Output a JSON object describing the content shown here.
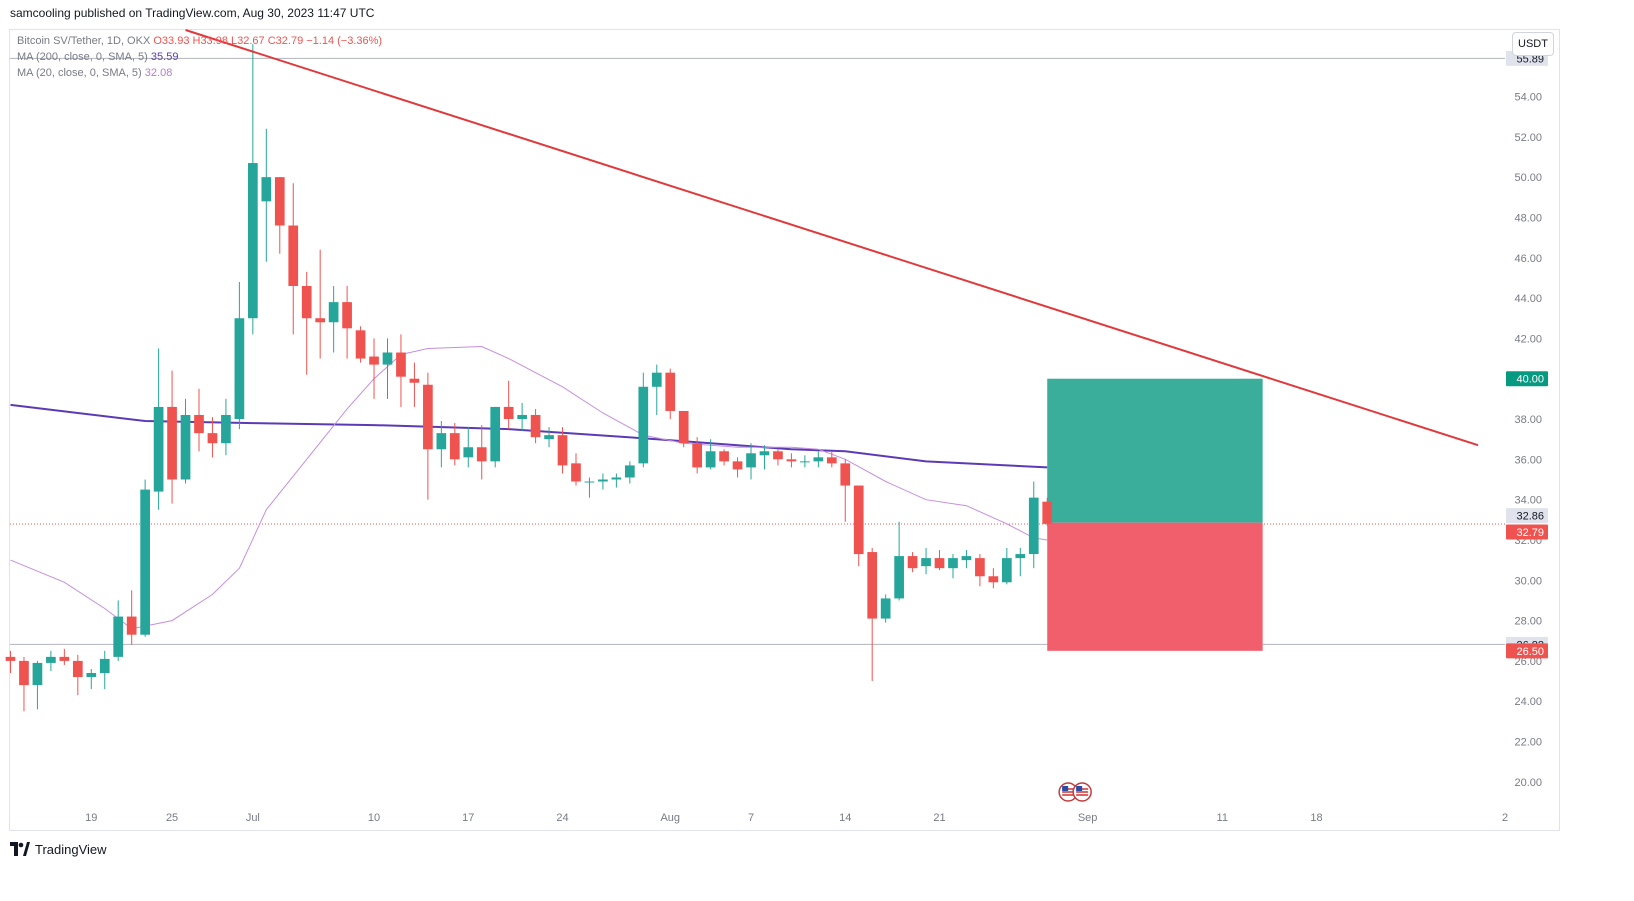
{
  "header": {
    "publisher_line": "samcooling published on TradingView.com, Aug 30, 2023 11:47 UTC"
  },
  "legend": {
    "symbol_line_prefix": "Bitcoin SV/Tether, 1D, OKX",
    "ohlc_line": "O33.93 H33.98 L32.67 C32.79 −1.14 (−3.36%)",
    "ma200_label": "MA (200, close, 0, SMA, 5)",
    "ma200_value": "35.59",
    "ma20_label": "MA (20, close, 0, SMA, 5)",
    "ma20_value": "32.08"
  },
  "currency_button": "USDT",
  "footer": {
    "brand": "TradingView"
  },
  "colors": {
    "up": "#26a69a",
    "down": "#ef5350",
    "ma200": "#5b3bb5",
    "ma20": "#c58ee0",
    "trendline": "#e0393c",
    "target_zone": "#3aae9b",
    "stop_zone": "#f25f6c",
    "axis_text": "#787b86"
  },
  "chart_data": {
    "type": "candlestick",
    "title": "Bitcoin SV/Tether, 1D, OKX",
    "y_axis": {
      "range": [
        19,
        57.3
      ],
      "ticks": [
        "20.00",
        "22.00",
        "24.00",
        "26.00",
        "28.00",
        "30.00",
        "32.00",
        "34.00",
        "36.00",
        "38.00",
        "40.00",
        "42.00",
        "44.00",
        "46.00",
        "48.00",
        "50.00",
        "52.00",
        "54.00"
      ]
    },
    "x_axis": {
      "start_date": "2023-06-13",
      "end_date": "2023-10-02",
      "ticks": [
        {
          "date": "2023-06-19",
          "label": "19"
        },
        {
          "date": "2023-06-25",
          "label": "25"
        },
        {
          "date": "2023-07-01",
          "label": "Jul"
        },
        {
          "date": "2023-07-10",
          "label": "10"
        },
        {
          "date": "2023-07-17",
          "label": "17"
        },
        {
          "date": "2023-07-24",
          "label": "24"
        },
        {
          "date": "2023-08-01",
          "label": "Aug"
        },
        {
          "date": "2023-08-07",
          "label": "7"
        },
        {
          "date": "2023-08-14",
          "label": "14"
        },
        {
          "date": "2023-08-21",
          "label": "21"
        },
        {
          "date": "2023-09-01",
          "label": "Sep"
        },
        {
          "date": "2023-09-11",
          "label": "11"
        },
        {
          "date": "2023-09-18",
          "label": "18"
        },
        {
          "date": "2023-10-02",
          "label": "2"
        }
      ]
    },
    "ohlc": [
      [
        "2023-06-13",
        26.2,
        26.5,
        25.4,
        26.0
      ],
      [
        "2023-06-14",
        26.0,
        26.2,
        23.5,
        24.8
      ],
      [
        "2023-06-15",
        24.8,
        26.0,
        23.6,
        25.9
      ],
      [
        "2023-06-16",
        25.9,
        26.5,
        25.5,
        26.2
      ],
      [
        "2023-06-17",
        26.2,
        26.6,
        25.8,
        26.0
      ],
      [
        "2023-06-18",
        26.0,
        26.3,
        24.3,
        25.2
      ],
      [
        "2023-06-19",
        25.2,
        25.6,
        24.6,
        25.4
      ],
      [
        "2023-06-20",
        25.4,
        26.5,
        24.6,
        26.1
      ],
      [
        "2023-06-21",
        26.2,
        29.0,
        26.0,
        28.2
      ],
      [
        "2023-06-22",
        28.2,
        29.5,
        26.8,
        27.3
      ],
      [
        "2023-06-23",
        27.3,
        35.0,
        27.2,
        34.5
      ],
      [
        "2023-06-24",
        34.4,
        41.5,
        33.5,
        38.6
      ],
      [
        "2023-06-25",
        38.6,
        40.4,
        33.8,
        35.0
      ],
      [
        "2023-06-26",
        35.0,
        39.0,
        34.8,
        38.2
      ],
      [
        "2023-06-27",
        38.2,
        39.5,
        36.4,
        37.3
      ],
      [
        "2023-06-28",
        37.3,
        38.1,
        36.1,
        36.8
      ],
      [
        "2023-06-29",
        36.8,
        39.0,
        36.2,
        38.2
      ],
      [
        "2023-06-30",
        38.0,
        44.8,
        37.5,
        43.0
      ],
      [
        "2023-07-01",
        43.0,
        56.6,
        42.2,
        50.7
      ],
      [
        "2023-07-02",
        48.8,
        52.4,
        45.8,
        50.0
      ],
      [
        "2023-07-03",
        50.0,
        50.0,
        46.2,
        47.6
      ],
      [
        "2023-07-04",
        47.6,
        49.7,
        42.2,
        44.6
      ],
      [
        "2023-07-05",
        44.6,
        45.3,
        40.2,
        43.0
      ],
      [
        "2023-07-06",
        43.0,
        46.4,
        41.0,
        42.8
      ],
      [
        "2023-07-07",
        42.8,
        44.6,
        41.3,
        43.8
      ],
      [
        "2023-07-08",
        43.8,
        44.6,
        41.0,
        42.5
      ],
      [
        "2023-07-09",
        42.4,
        42.6,
        40.8,
        41.0
      ],
      [
        "2023-07-10",
        41.1,
        42.0,
        39.0,
        40.7
      ],
      [
        "2023-07-11",
        40.7,
        42.0,
        39.0,
        41.3
      ],
      [
        "2023-07-12",
        41.3,
        42.2,
        38.6,
        40.1
      ],
      [
        "2023-07-13",
        40.0,
        40.8,
        38.6,
        39.8
      ],
      [
        "2023-07-14",
        39.7,
        40.3,
        34.0,
        36.5
      ],
      [
        "2023-07-15",
        36.5,
        37.9,
        35.6,
        37.3
      ],
      [
        "2023-07-16",
        37.3,
        37.8,
        35.7,
        36.0
      ],
      [
        "2023-07-17",
        36.1,
        37.6,
        35.6,
        36.6
      ],
      [
        "2023-07-18",
        36.6,
        37.7,
        35.0,
        35.9
      ],
      [
        "2023-07-19",
        35.9,
        38.6,
        35.6,
        38.6
      ],
      [
        "2023-07-20",
        38.6,
        39.9,
        37.5,
        38.0
      ],
      [
        "2023-07-21",
        38.0,
        38.8,
        37.4,
        38.2
      ],
      [
        "2023-07-22",
        38.2,
        38.5,
        36.8,
        37.1
      ],
      [
        "2023-07-23",
        37.0,
        37.6,
        36.6,
        37.2
      ],
      [
        "2023-07-24",
        37.2,
        37.6,
        35.3,
        35.7
      ],
      [
        "2023-07-25",
        35.8,
        36.3,
        34.7,
        34.9
      ],
      [
        "2023-07-26",
        34.9,
        35.1,
        34.1,
        34.9
      ],
      [
        "2023-07-27",
        34.9,
        35.3,
        34.5,
        35.0
      ],
      [
        "2023-07-28",
        35.0,
        35.3,
        34.6,
        35.1
      ],
      [
        "2023-07-29",
        35.1,
        35.9,
        34.8,
        35.7
      ],
      [
        "2023-07-30",
        35.8,
        40.3,
        35.6,
        39.6
      ],
      [
        "2023-07-31",
        39.6,
        40.7,
        38.2,
        40.3
      ],
      [
        "2023-08-01",
        40.3,
        40.5,
        38.0,
        38.4
      ],
      [
        "2023-08-02",
        38.4,
        38.4,
        36.6,
        36.8
      ],
      [
        "2023-08-03",
        36.8,
        37.1,
        35.3,
        35.6
      ],
      [
        "2023-08-04",
        35.6,
        37.0,
        35.5,
        36.4
      ],
      [
        "2023-08-05",
        36.4,
        36.5,
        35.7,
        35.9
      ],
      [
        "2023-08-06",
        35.9,
        36.1,
        35.1,
        35.5
      ],
      [
        "2023-08-07",
        35.6,
        36.8,
        35.0,
        36.3
      ],
      [
        "2023-08-08",
        36.2,
        36.7,
        35.5,
        36.4
      ],
      [
        "2023-08-09",
        36.4,
        36.5,
        35.7,
        36.0
      ],
      [
        "2023-08-10",
        36.0,
        36.3,
        35.6,
        35.9
      ],
      [
        "2023-08-11",
        35.9,
        36.2,
        35.6,
        35.9
      ],
      [
        "2023-08-12",
        35.9,
        36.4,
        35.6,
        36.1
      ],
      [
        "2023-08-13",
        36.1,
        36.4,
        35.6,
        35.8
      ],
      [
        "2023-08-14",
        35.8,
        36.0,
        32.9,
        34.7
      ],
      [
        "2023-08-15",
        34.7,
        34.7,
        30.7,
        31.3
      ],
      [
        "2023-08-16",
        31.4,
        31.6,
        25.0,
        28.1
      ],
      [
        "2023-08-17",
        28.1,
        29.3,
        27.9,
        29.1
      ],
      [
        "2023-08-18",
        29.1,
        32.9,
        29.0,
        31.2
      ],
      [
        "2023-08-19",
        31.2,
        31.4,
        30.4,
        30.6
      ],
      [
        "2023-08-20",
        30.7,
        31.6,
        30.3,
        31.1
      ],
      [
        "2023-08-21",
        31.1,
        31.5,
        30.5,
        30.6
      ],
      [
        "2023-08-22",
        30.6,
        31.3,
        30.1,
        31.1
      ],
      [
        "2023-08-23",
        31.0,
        31.5,
        30.6,
        31.2
      ],
      [
        "2023-08-24",
        31.1,
        31.3,
        29.7,
        30.2
      ],
      [
        "2023-08-25",
        30.2,
        30.6,
        29.6,
        29.9
      ],
      [
        "2023-08-26",
        29.9,
        31.6,
        29.8,
        31.1
      ],
      [
        "2023-08-27",
        31.1,
        31.6,
        30.2,
        31.3
      ],
      [
        "2023-08-28",
        31.3,
        34.9,
        30.6,
        34.1
      ],
      [
        "2023-08-29",
        33.9,
        34.1,
        32.7,
        32.8
      ]
    ],
    "ma200": [
      [
        "2023-06-13",
        38.7
      ],
      [
        "2023-06-18",
        38.3
      ],
      [
        "2023-06-23",
        37.9
      ],
      [
        "2023-07-01",
        37.8
      ],
      [
        "2023-07-10",
        37.7
      ],
      [
        "2023-07-20",
        37.5
      ],
      [
        "2023-07-31",
        37.0
      ],
      [
        "2023-08-10",
        36.5
      ],
      [
        "2023-08-14",
        36.4
      ],
      [
        "2023-08-20",
        35.9
      ],
      [
        "2023-08-29",
        35.6
      ]
    ],
    "ma20": [
      [
        "2023-06-13",
        31.0
      ],
      [
        "2023-06-17",
        29.9
      ],
      [
        "2023-06-20",
        28.6
      ],
      [
        "2023-06-22",
        27.6
      ],
      [
        "2023-06-25",
        28.0
      ],
      [
        "2023-06-28",
        29.3
      ],
      [
        "2023-06-30",
        30.6
      ],
      [
        "2023-07-02",
        33.5
      ],
      [
        "2023-07-05",
        36.0
      ],
      [
        "2023-07-08",
        38.5
      ],
      [
        "2023-07-10",
        40.0
      ],
      [
        "2023-07-12",
        41.2
      ],
      [
        "2023-07-14",
        41.5
      ],
      [
        "2023-07-18",
        41.6
      ],
      [
        "2023-07-20",
        41.0
      ],
      [
        "2023-07-24",
        39.6
      ],
      [
        "2023-07-27",
        38.3
      ],
      [
        "2023-07-30",
        37.2
      ],
      [
        "2023-08-02",
        36.8
      ],
      [
        "2023-08-06",
        36.6
      ],
      [
        "2023-08-10",
        36.6
      ],
      [
        "2023-08-12",
        36.5
      ],
      [
        "2023-08-14",
        36.0
      ],
      [
        "2023-08-17",
        34.9
      ],
      [
        "2023-08-20",
        34.0
      ],
      [
        "2023-08-23",
        33.7
      ],
      [
        "2023-08-26",
        32.8
      ],
      [
        "2023-08-28",
        32.1
      ],
      [
        "2023-08-29",
        32.0
      ]
    ],
    "trendline": {
      "from": [
        "2023-06-26",
        57.3
      ],
      "to": [
        "2023-09-30",
        36.7
      ]
    },
    "position": {
      "start": "2023-08-29",
      "end": "2023-09-14",
      "entry": 32.86,
      "target": 40.0,
      "stop": 26.5
    },
    "horizontal_levels": [
      55.89,
      26.82
    ],
    "last_price": 32.79,
    "price_labels": [
      {
        "value": 55.89,
        "text": "55.89",
        "style": "grey"
      },
      {
        "value": 40.0,
        "text": "40.00",
        "style": "green"
      },
      {
        "value": 32.86,
        "text": "32.86",
        "style": "grey"
      },
      {
        "value": 32.79,
        "text": "32.79",
        "style": "red"
      },
      {
        "value": 26.82,
        "text": "26.82",
        "style": "grey"
      },
      {
        "value": 26.5,
        "text": "26.50",
        "style": "red"
      }
    ],
    "event_markers": {
      "date": "2023-08-31",
      "count": 2,
      "icon": "us-flag-icon"
    }
  }
}
